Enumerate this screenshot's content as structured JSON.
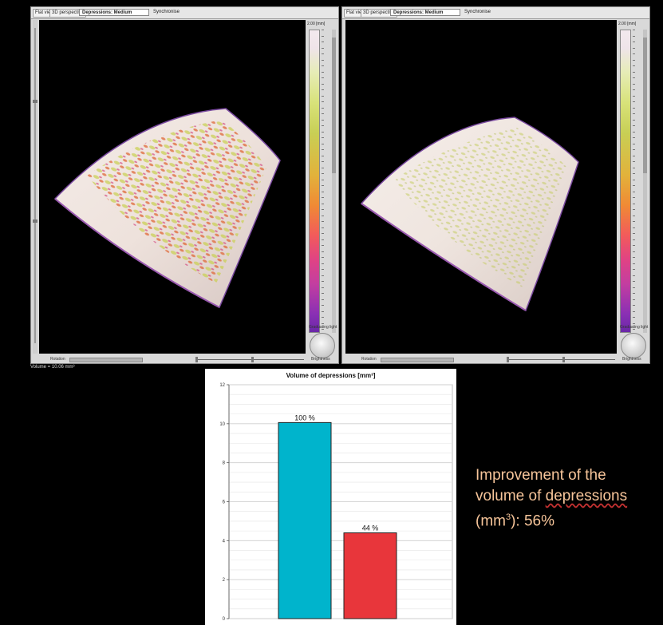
{
  "viewer_left": {
    "toolbar": {
      "flat_label": "Flat view",
      "persp_label": "3D perspective",
      "select_value": "Depressions: Medium",
      "sync_label": "Synchronise"
    },
    "colorbar_header": "2.00  [mm]",
    "legend_label": "Graduating light",
    "rotation_label": "Rotation",
    "brightness_label": "Brightness",
    "status": "Volume = 10.06 mm³"
  },
  "viewer_right": {
    "toolbar": {
      "flat_label": "Flat view",
      "persp_label": "3D perspective",
      "select_value": "Depressions: Medium",
      "sync_label": "Synchronise"
    },
    "colorbar_header": "2.00  [mm]",
    "legend_label": "Graduating light",
    "rotation_label": "Rotation",
    "brightness_label": "Brightness"
  },
  "caption": {
    "line1": "Improvement of the",
    "line2_a": "volume of ",
    "line2_b": "depressions",
    "line3_a": "(mm",
    "line3_sup": "3",
    "line3_b": "): 56%"
  },
  "chart_data": {
    "type": "bar",
    "title": "Volume of depressions [mm³]",
    "categories": [
      "",
      ""
    ],
    "values": [
      10.06,
      4.4
    ],
    "data_labels": [
      "100 %",
      "44 %"
    ],
    "colors": [
      "#00b4cc",
      "#e8363b"
    ],
    "ylim": [
      0,
      12
    ],
    "yticks": [
      0,
      2,
      4,
      6,
      8,
      10,
      12
    ],
    "grid": true,
    "xlabel": "",
    "ylabel": ""
  }
}
